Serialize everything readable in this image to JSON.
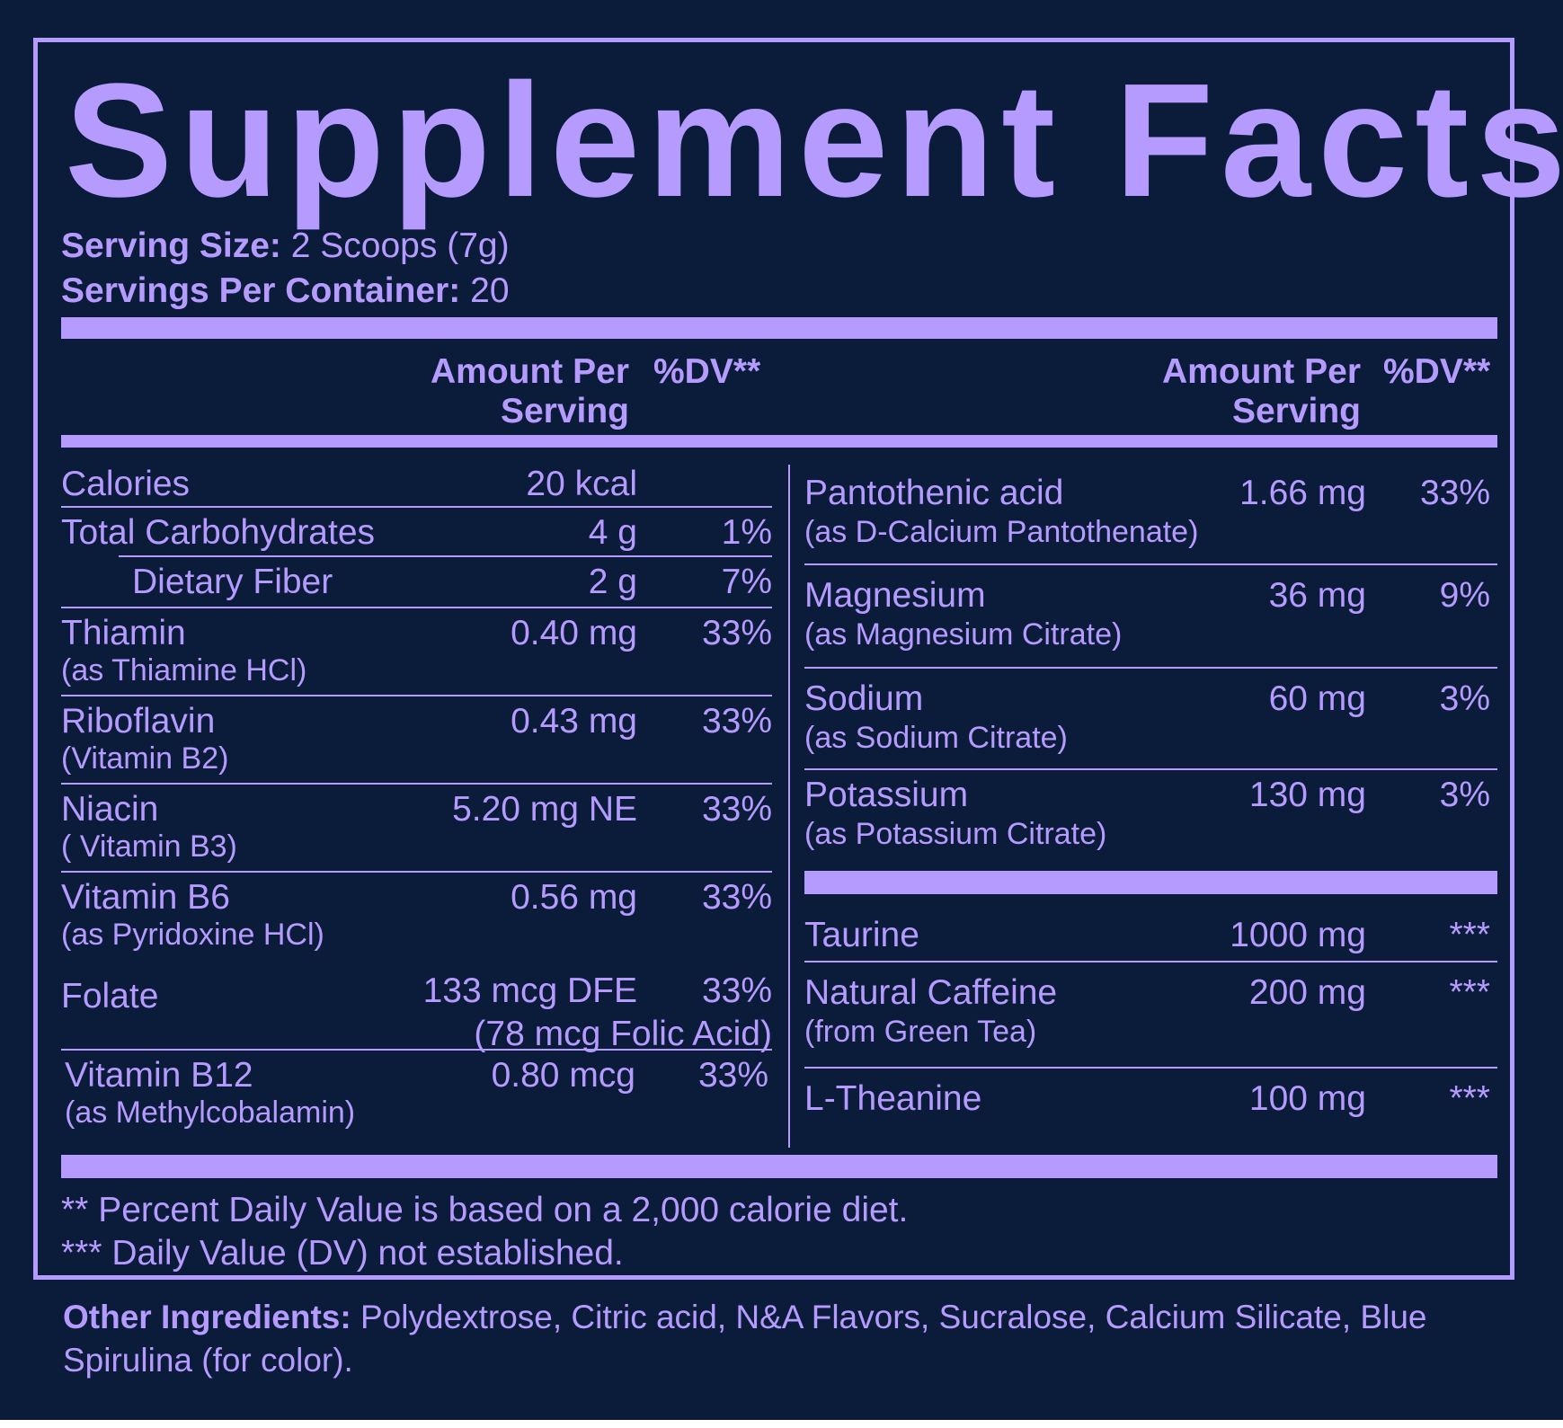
{
  "title": "Supplement Facts",
  "serving": {
    "size_label": "Serving Size:",
    "size_value": " 2 Scoops (7g)",
    "per_container_label": "Servings Per Container:",
    "per_container_value": " 20"
  },
  "header": {
    "amount_line1": "Amount Per",
    "amount_line2": "Serving",
    "dv": "%DV**"
  },
  "left_rows": [
    {
      "name": "Calories",
      "sub": "",
      "amount": "20 kcal",
      "amount2": "",
      "dv": ""
    },
    {
      "name": "Total Carbohydrates",
      "sub": "",
      "amount": "4 g",
      "amount2": "",
      "dv": "1%"
    },
    {
      "name": "Dietary Fiber",
      "sub": "",
      "amount": "2 g",
      "amount2": "",
      "dv": "7%"
    },
    {
      "name": "Thiamin",
      "sub": "(as Thiamine HCl)",
      "amount": "0.40 mg",
      "amount2": "",
      "dv": "33%"
    },
    {
      "name": "Riboflavin",
      "sub": "(Vitamin B2)",
      "amount": "0.43 mg",
      "amount2": "",
      "dv": "33%"
    },
    {
      "name": "Niacin",
      "sub": "( Vitamin B3)",
      "amount": "5.20 mg NE",
      "amount2": "",
      "dv": "33%"
    },
    {
      "name": "Vitamin B6",
      "sub": "(as Pyridoxine HCl)",
      "amount": "0.56 mg",
      "amount2": "",
      "dv": "33%"
    },
    {
      "name": "Folate",
      "sub": "",
      "amount": "133 mcg DFE",
      "amount2": "(78 mcg Folic Acid)",
      "dv": "33%"
    },
    {
      "name": "Vitamin B12",
      "sub": "(as Methylcobalamin)",
      "amount": "0.80 mcg",
      "amount2": "",
      "dv": "33%"
    }
  ],
  "right_rows": [
    {
      "name": "Pantothenic acid",
      "sub": "(as D-Calcium Pantothenate)",
      "amount": "1.66 mg",
      "dv": "33%"
    },
    {
      "name": "Magnesium",
      "sub": "(as Magnesium Citrate)",
      "amount": "36 mg",
      "dv": "9%"
    },
    {
      "name": "Sodium",
      "sub": "(as Sodium Citrate)",
      "amount": "60 mg",
      "dv": "3%"
    },
    {
      "name": "Potassium",
      "sub": "(as Potassium Citrate)",
      "amount": "130 mg",
      "dv": "3%"
    }
  ],
  "right_rows_2": [
    {
      "name": "Taurine",
      "sub": "",
      "amount": "1000 mg",
      "dv": "***"
    },
    {
      "name": "Natural Caffeine",
      "sub": "(from Green Tea)",
      "amount": "200 mg",
      "dv": "***"
    },
    {
      "name": "L-Theanine",
      "sub": "",
      "amount": "100 mg",
      "dv": "***"
    }
  ],
  "footnotes": {
    "line1": "** Percent Daily Value is based on a 2,000 calorie diet.",
    "line2": "*** Daily Value (DV) not established."
  },
  "other_ingredients": {
    "label": "Other Ingredients:",
    "text": " Polydextrose, Citric acid, N&A Flavors, Sucralose, Calcium Silicate, Blue Spirulina (for color)."
  },
  "colors": {
    "background": "#0b1b3a",
    "accent": "#b69bff"
  }
}
